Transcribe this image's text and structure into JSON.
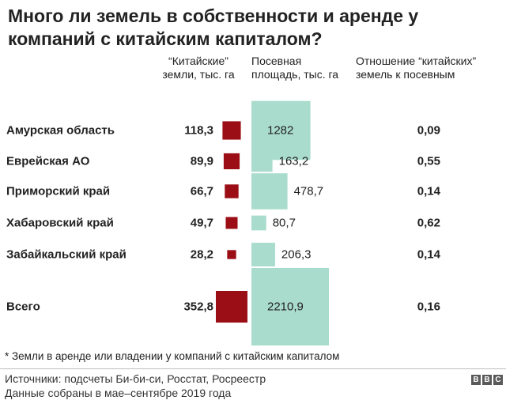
{
  "title": "Много ли земель в собственности и аренде у компаний с китайским капиталом?",
  "headers": {
    "chinese": [
      "“Китайские”",
      "земли, тыс. га"
    ],
    "sown": [
      "Посевная",
      "площадь, тыс. га"
    ],
    "ratio": [
      "Отношение “китайских”",
      "земель к посевным"
    ]
  },
  "colors": {
    "chinese": "#9b0e15",
    "sown": "#a9dccd",
    "text": "#222222"
  },
  "chart_data": {
    "type": "table",
    "rows": [
      {
        "region": "Амурская область",
        "chinese": 118.3,
        "chinese_label": "118,3",
        "sown": 1282,
        "sown_label": "1282",
        "ratio": "0,09"
      },
      {
        "region": "Еврейская АО",
        "chinese": 89.9,
        "chinese_label": "89,9",
        "sown": 163.2,
        "sown_label": "163,2",
        "ratio": "0,55"
      },
      {
        "region": "Приморский край",
        "chinese": 66.7,
        "chinese_label": "66,7",
        "sown": 478.7,
        "sown_label": "478,7",
        "ratio": "0,14"
      },
      {
        "region": "Хабаровский край",
        "chinese": 49.7,
        "chinese_label": "49,7",
        "sown": 80.7,
        "sown_label": "80,7",
        "ratio": "0,62"
      },
      {
        "region": "Забайкальский край",
        "chinese": 28.2,
        "chinese_label": "28,2",
        "sown": 206.3,
        "sown_label": "206,3",
        "ratio": "0,14"
      }
    ],
    "total": {
      "region": "Всего",
      "chinese": 352.8,
      "chinese_label": "352,8",
      "sown": 2210.9,
      "sown_label": "2210,9",
      "ratio": "0,16"
    }
  },
  "footnote": "* Земли в аренде или владении у компаний с китайским капиталом",
  "sources": [
    "Источники: подсчеты Би-би-си, Росстат, Росреестр",
    "Данные собраны в мае–сентябре 2019 года"
  ],
  "logo": [
    "B",
    "B",
    "C"
  ]
}
